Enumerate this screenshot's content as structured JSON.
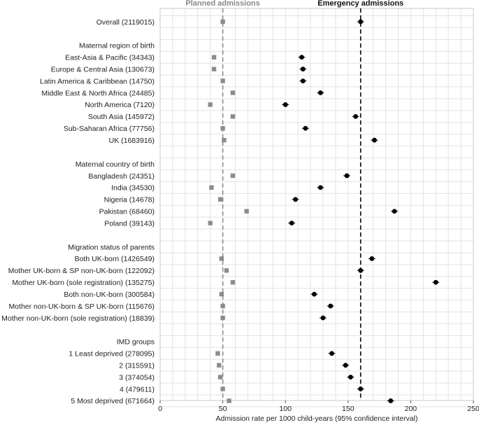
{
  "chart_data": {
    "type": "scatter",
    "series_names": {
      "planned": "Planned admissions",
      "emergency": "Emergency admissions"
    },
    "xlabel": "Admission rate per 1000 child-years (95% confidence interval)",
    "xlim": [
      0,
      250
    ],
    "xticks": [
      0,
      50,
      100,
      150,
      200,
      250
    ],
    "reference_lines": {
      "planned": 50,
      "emergency": 160
    },
    "colors": {
      "planned": "#8c8c8c",
      "emergency": "#000000",
      "grid": "#e3e3e3",
      "frame": "#c8c8c8"
    },
    "rows": [
      {
        "label": "Overall (2119015)",
        "planned": 50,
        "emergency": 160
      },
      {
        "label": "",
        "planned": null,
        "emergency": null
      },
      {
        "label": "Maternal region of birth",
        "planned": null,
        "emergency": null
      },
      {
        "label": "East-Asia & Pacific (34343)",
        "planned": 43,
        "emergency": 113
      },
      {
        "label": "Europe & Central Asia (130673)",
        "planned": 43,
        "emergency": 114
      },
      {
        "label": "Latin America & Caribbean (14750)",
        "planned": 50,
        "emergency": 114
      },
      {
        "label": "Middle East & North Africa (24485)",
        "planned": 58,
        "emergency": 128
      },
      {
        "label": "North America (7120)",
        "planned": 40,
        "emergency": 100
      },
      {
        "label": "South Asia (145972)",
        "planned": 58,
        "emergency": 156
      },
      {
        "label": "Sub-Saharan Africa (77756)",
        "planned": 50,
        "emergency": 116
      },
      {
        "label": "UK (1683916)",
        "planned": 51,
        "emergency": 171
      },
      {
        "label": "",
        "planned": null,
        "emergency": null
      },
      {
        "label": "Maternal country of birth",
        "planned": null,
        "emergency": null
      },
      {
        "label": "Bangladesh (24351)",
        "planned": 58,
        "emergency": 149
      },
      {
        "label": "India (34530)",
        "planned": 41,
        "emergency": 128
      },
      {
        "label": "Nigeria (14678)",
        "planned": 48,
        "emergency": 108
      },
      {
        "label": "Pakistan (68460)",
        "planned": 69,
        "emergency": 187
      },
      {
        "label": "Poland (39143)",
        "planned": 40,
        "emergency": 105
      },
      {
        "label": "",
        "planned": null,
        "emergency": null
      },
      {
        "label": "Migration status of parents",
        "planned": null,
        "emergency": null
      },
      {
        "label": "Both UK-born (1426549)",
        "planned": 49,
        "emergency": 169
      },
      {
        "label": "Mother UK-born & SP non-UK-born (122092)",
        "planned": 53,
        "emergency": 160
      },
      {
        "label": "Mother UK-born (sole registration) (135275)",
        "planned": 58,
        "emergency": 220
      },
      {
        "label": "Both non-UK-born (300584)",
        "planned": 49,
        "emergency": 123
      },
      {
        "label": "Mother non-UK-born & SP UK-born (115676)",
        "planned": 50,
        "emergency": 136
      },
      {
        "label": "Mother non-UK-born (sole registration) (18839)",
        "planned": 50,
        "emergency": 130
      },
      {
        "label": "",
        "planned": null,
        "emergency": null
      },
      {
        "label": "IMD groups",
        "planned": null,
        "emergency": null
      },
      {
        "label": "1 Least deprived (278095)",
        "planned": 46,
        "emergency": 137
      },
      {
        "label": "2 (315591)",
        "planned": 47,
        "emergency": 148
      },
      {
        "label": "3 (374054)",
        "planned": 48,
        "emergency": 152
      },
      {
        "label": "4 (479611)",
        "planned": 50,
        "emergency": 160
      },
      {
        "label": "5 Most deprived (671664)",
        "planned": 55,
        "emergency": 184
      }
    ]
  }
}
